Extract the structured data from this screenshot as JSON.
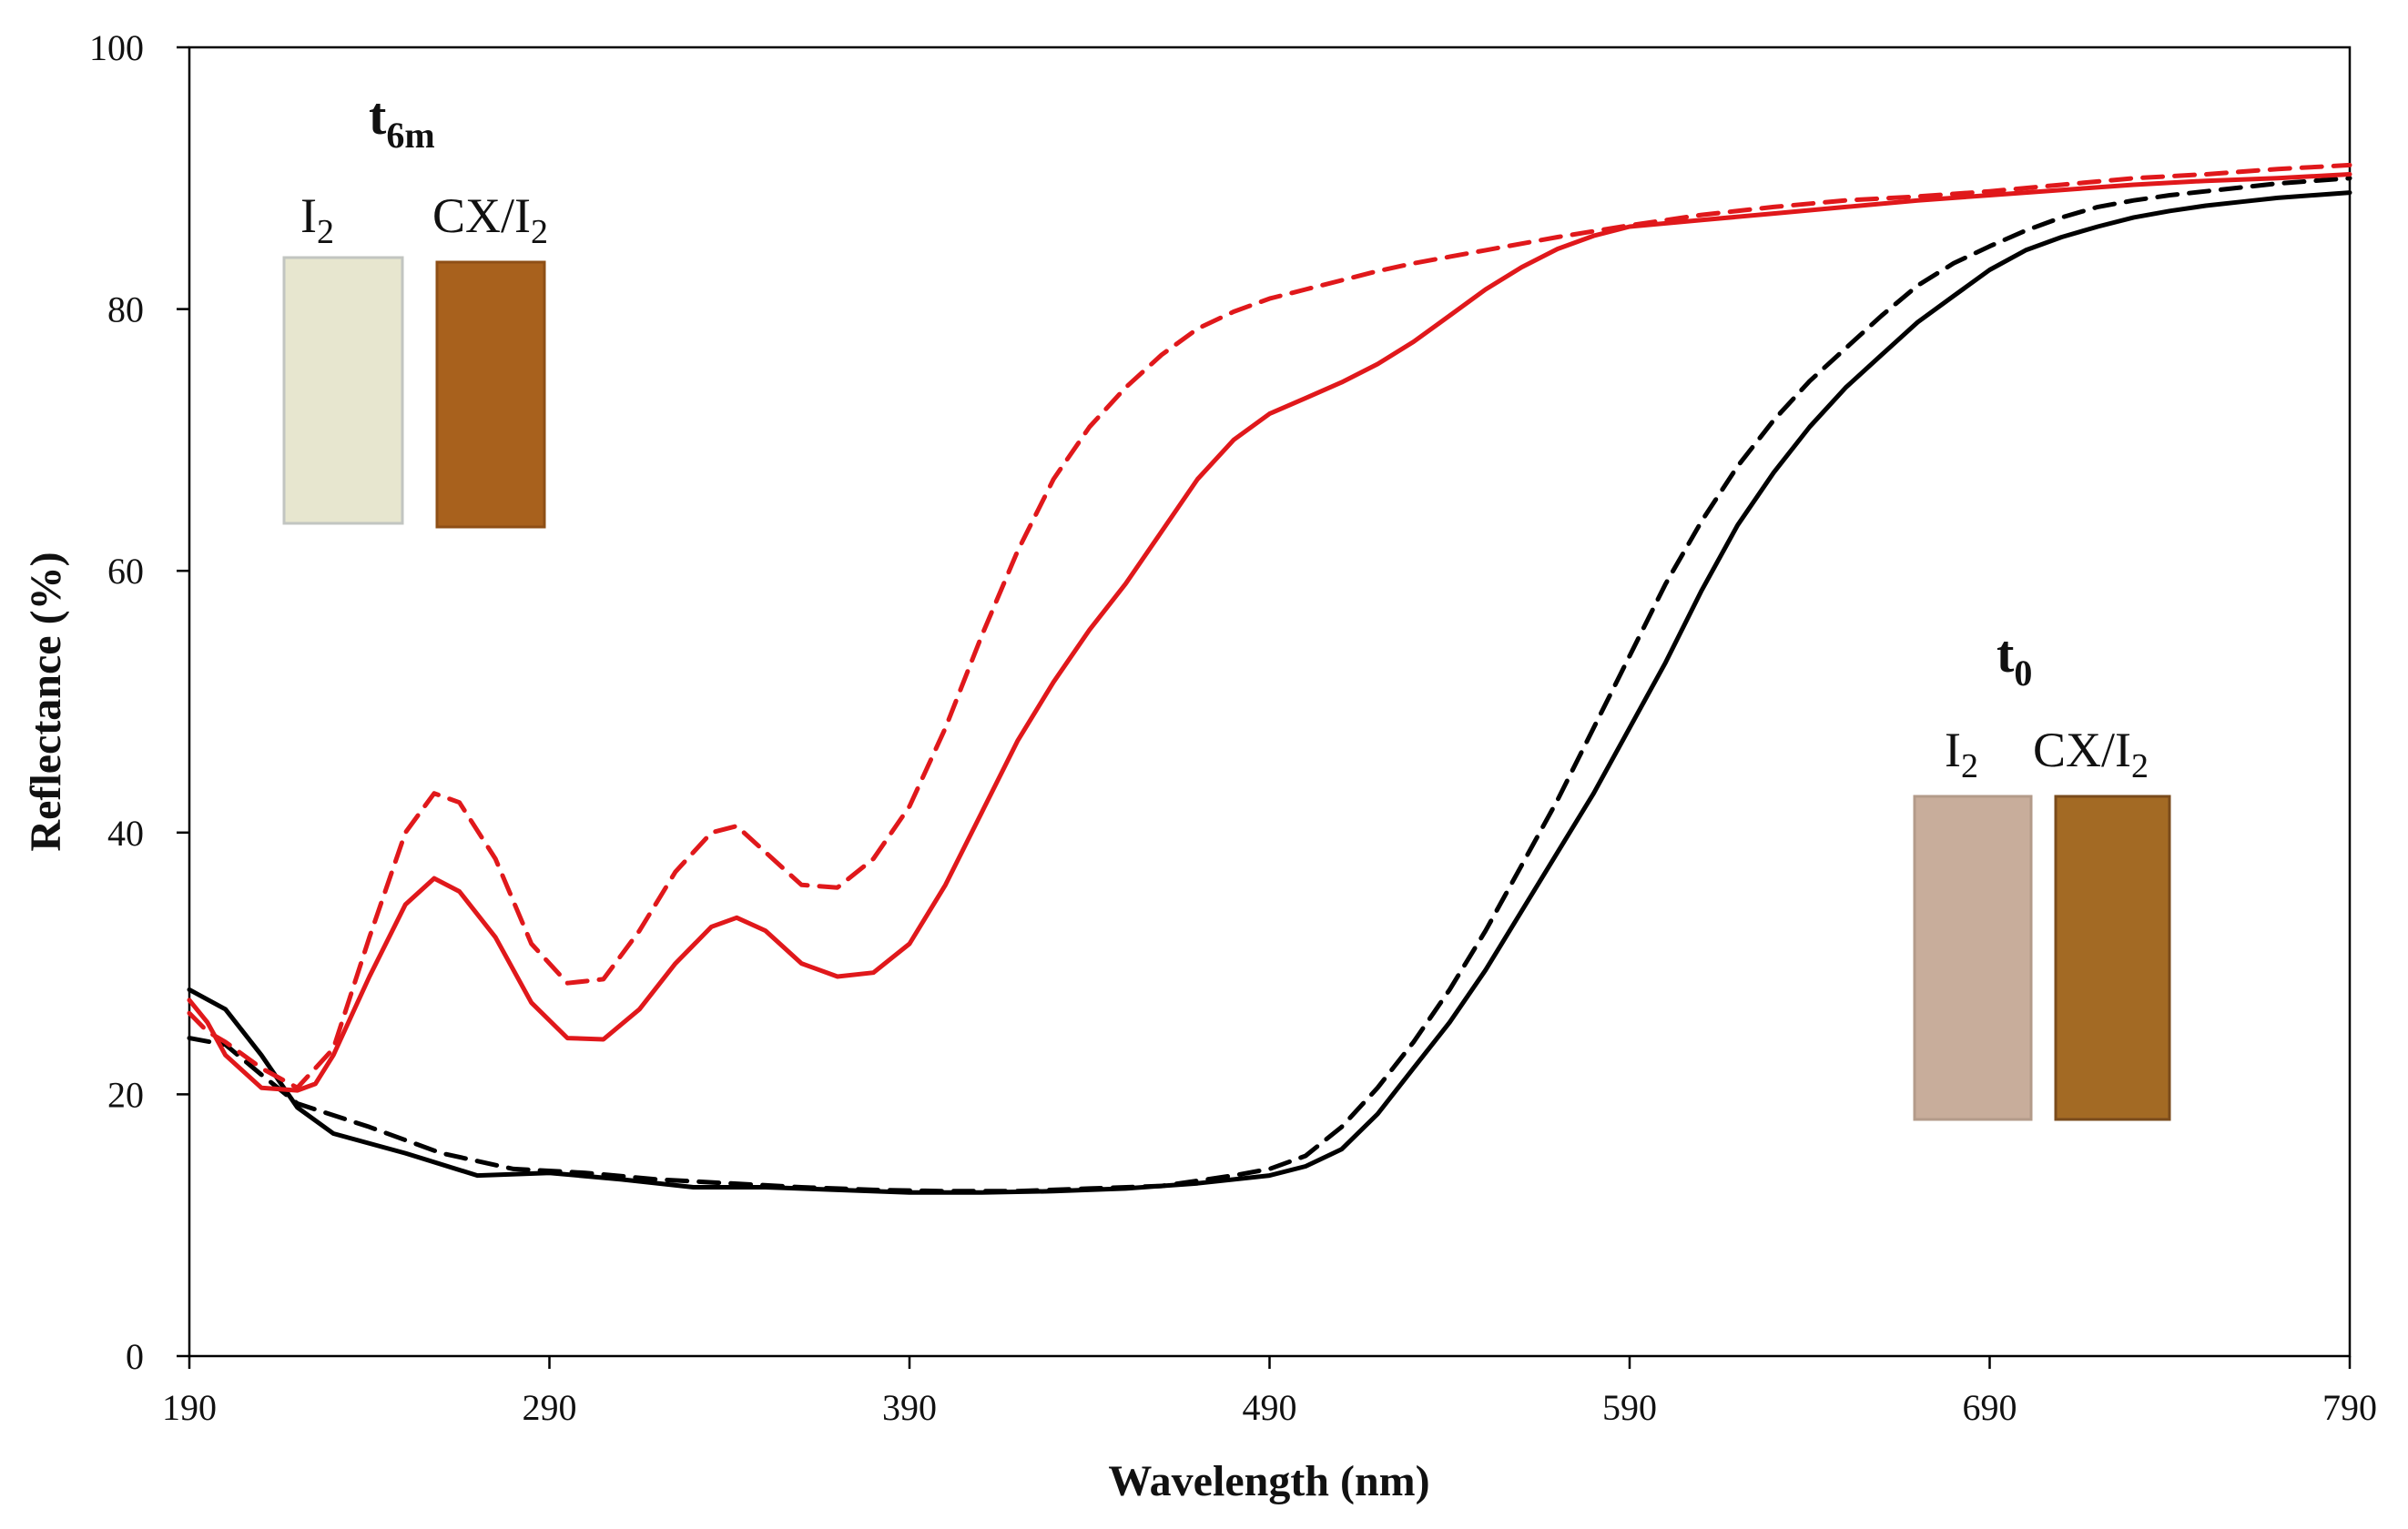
{
  "chart_data": {
    "type": "line",
    "title": "",
    "xlabel": "Wavelength (nm)",
    "ylabel": "Reflectance (%)",
    "xlim": [
      190,
      790
    ],
    "ylim": [
      0,
      100
    ],
    "grid": false,
    "x_ticks": [
      "190",
      "290",
      "390",
      "490",
      "590",
      "690",
      "790"
    ],
    "y_ticks": [
      "0",
      "20",
      "40",
      "60",
      "80",
      "100"
    ],
    "series": [
      {
        "name": "CX/I2 t0 (black solid)",
        "color": "#000000",
        "dashed": false,
        "points": [
          [
            190,
            28
          ],
          [
            200,
            26.5
          ],
          [
            210,
            23
          ],
          [
            220,
            19
          ],
          [
            230,
            17
          ],
          [
            250,
            15.5
          ],
          [
            270,
            13.8
          ],
          [
            290,
            14
          ],
          [
            310,
            13.5
          ],
          [
            330,
            12.9
          ],
          [
            350,
            12.9
          ],
          [
            370,
            12.7
          ],
          [
            390,
            12.5
          ],
          [
            410,
            12.5
          ],
          [
            430,
            12.6
          ],
          [
            450,
            12.8
          ],
          [
            470,
            13.2
          ],
          [
            490,
            13.8
          ],
          [
            500,
            14.5
          ],
          [
            510,
            15.8
          ],
          [
            520,
            18.5
          ],
          [
            530,
            22
          ],
          [
            540,
            25.5
          ],
          [
            550,
            29.5
          ],
          [
            560,
            34
          ],
          [
            570,
            38.5
          ],
          [
            580,
            43
          ],
          [
            590,
            48
          ],
          [
            600,
            53
          ],
          [
            610,
            58.5
          ],
          [
            620,
            63.5
          ],
          [
            630,
            67.5
          ],
          [
            640,
            71
          ],
          [
            650,
            74
          ],
          [
            660,
            76.5
          ],
          [
            670,
            79
          ],
          [
            680,
            81
          ],
          [
            690,
            83
          ],
          [
            700,
            84.5
          ],
          [
            710,
            85.5
          ],
          [
            720,
            86.3
          ],
          [
            730,
            87
          ],
          [
            740,
            87.5
          ],
          [
            750,
            87.9
          ],
          [
            760,
            88.2
          ],
          [
            770,
            88.5
          ],
          [
            780,
            88.7
          ],
          [
            790,
            88.9
          ]
        ]
      },
      {
        "name": "I2 t0 (black dashed)",
        "color": "#000000",
        "dashed": true,
        "points": [
          [
            190,
            24.3
          ],
          [
            200,
            23.8
          ],
          [
            210,
            21.5
          ],
          [
            220,
            19.3
          ],
          [
            240,
            17.5
          ],
          [
            260,
            15.5
          ],
          [
            280,
            14.3
          ],
          [
            300,
            14
          ],
          [
            320,
            13.5
          ],
          [
            340,
            13.2
          ],
          [
            360,
            12.9
          ],
          [
            380,
            12.7
          ],
          [
            400,
            12.6
          ],
          [
            420,
            12.6
          ],
          [
            440,
            12.8
          ],
          [
            460,
            13
          ],
          [
            480,
            13.8
          ],
          [
            490,
            14.3
          ],
          [
            500,
            15.3
          ],
          [
            510,
            17.5
          ],
          [
            520,
            20.5
          ],
          [
            530,
            24
          ],
          [
            540,
            28
          ],
          [
            550,
            32.5
          ],
          [
            560,
            37.5
          ],
          [
            570,
            42.5
          ],
          [
            580,
            48
          ],
          [
            590,
            53.5
          ],
          [
            600,
            59
          ],
          [
            610,
            63.8
          ],
          [
            620,
            68
          ],
          [
            630,
            71.5
          ],
          [
            640,
            74.5
          ],
          [
            650,
            77
          ],
          [
            660,
            79.5
          ],
          [
            670,
            81.8
          ],
          [
            680,
            83.5
          ],
          [
            690,
            84.8
          ],
          [
            700,
            86
          ],
          [
            710,
            87
          ],
          [
            720,
            87.8
          ],
          [
            730,
            88.3
          ],
          [
            740,
            88.7
          ],
          [
            750,
            89
          ],
          [
            760,
            89.3
          ],
          [
            770,
            89.6
          ],
          [
            780,
            89.8
          ],
          [
            790,
            90
          ]
        ]
      },
      {
        "name": "CX/I2 t6m (red solid)",
        "color": "#e0181b",
        "dashed": false,
        "points": [
          [
            190,
            27.2
          ],
          [
            195,
            25.5
          ],
          [
            200,
            23
          ],
          [
            210,
            20.5
          ],
          [
            220,
            20.3
          ],
          [
            225,
            20.8
          ],
          [
            230,
            23
          ],
          [
            240,
            29
          ],
          [
            250,
            34.5
          ],
          [
            258,
            36.5
          ],
          [
            265,
            35.5
          ],
          [
            275,
            32
          ],
          [
            285,
            27
          ],
          [
            295,
            24.3
          ],
          [
            305,
            24.2
          ],
          [
            315,
            26.5
          ],
          [
            325,
            30
          ],
          [
            335,
            32.8
          ],
          [
            342,
            33.5
          ],
          [
            350,
            32.5
          ],
          [
            360,
            30
          ],
          [
            370,
            29
          ],
          [
            380,
            29.3
          ],
          [
            390,
            31.5
          ],
          [
            400,
            36
          ],
          [
            410,
            41.5
          ],
          [
            420,
            47
          ],
          [
            430,
            51.5
          ],
          [
            440,
            55.5
          ],
          [
            450,
            59
          ],
          [
            460,
            63
          ],
          [
            470,
            67
          ],
          [
            480,
            70
          ],
          [
            490,
            72
          ],
          [
            500,
            73.2
          ],
          [
            510,
            74.4
          ],
          [
            520,
            75.8
          ],
          [
            530,
            77.5
          ],
          [
            540,
            79.5
          ],
          [
            550,
            81.5
          ],
          [
            560,
            83.2
          ],
          [
            570,
            84.6
          ],
          [
            580,
            85.6
          ],
          [
            590,
            86.3
          ],
          [
            610,
            86.8
          ],
          [
            630,
            87.3
          ],
          [
            650,
            87.8
          ],
          [
            670,
            88.3
          ],
          [
            690,
            88.7
          ],
          [
            710,
            89.1
          ],
          [
            730,
            89.5
          ],
          [
            750,
            89.8
          ],
          [
            770,
            90
          ],
          [
            790,
            90.3
          ]
        ]
      },
      {
        "name": "I2 t6m (red dashed)",
        "color": "#e0181b",
        "dashed": true,
        "points": [
          [
            190,
            26.2
          ],
          [
            195,
            24.8
          ],
          [
            200,
            24
          ],
          [
            210,
            22
          ],
          [
            220,
            20.5
          ],
          [
            230,
            23.5
          ],
          [
            240,
            32
          ],
          [
            250,
            40
          ],
          [
            258,
            43
          ],
          [
            265,
            42.3
          ],
          [
            275,
            38
          ],
          [
            285,
            31.5
          ],
          [
            295,
            28.5
          ],
          [
            305,
            28.8
          ],
          [
            315,
            32.5
          ],
          [
            325,
            37
          ],
          [
            335,
            40
          ],
          [
            342,
            40.5
          ],
          [
            350,
            38.5
          ],
          [
            360,
            36
          ],
          [
            370,
            35.8
          ],
          [
            380,
            38
          ],
          [
            390,
            42
          ],
          [
            400,
            48
          ],
          [
            410,
            55
          ],
          [
            420,
            61.5
          ],
          [
            430,
            67
          ],
          [
            440,
            71
          ],
          [
            450,
            74
          ],
          [
            460,
            76.5
          ],
          [
            470,
            78.5
          ],
          [
            480,
            79.8
          ],
          [
            490,
            80.8
          ],
          [
            500,
            81.5
          ],
          [
            510,
            82.2
          ],
          [
            520,
            82.9
          ],
          [
            530,
            83.5
          ],
          [
            540,
            84
          ],
          [
            550,
            84.5
          ],
          [
            570,
            85.5
          ],
          [
            590,
            86.4
          ],
          [
            610,
            87.2
          ],
          [
            630,
            87.8
          ],
          [
            650,
            88.3
          ],
          [
            670,
            88.6
          ],
          [
            690,
            89
          ],
          [
            710,
            89.5
          ],
          [
            730,
            90
          ],
          [
            750,
            90.3
          ],
          [
            770,
            90.7
          ],
          [
            790,
            91
          ]
        ]
      }
    ],
    "insets": [
      {
        "title_main": "t",
        "title_sub": "6m",
        "samples": [
          {
            "label_main": "I",
            "label_sub": "2",
            "color": "#e7e6cf",
            "edge_color": "#c2c5c1"
          },
          {
            "label_main": "CX/I",
            "label_sub": "2",
            "color": "#a8611d",
            "edge_color": "#8e4f16"
          }
        ]
      },
      {
        "title_main": "t",
        "title_sub": "0",
        "samples": [
          {
            "label_main": "I",
            "label_sub": "2",
            "color": "#c8ad9b",
            "edge_color": "#b39b8a"
          },
          {
            "label_main": "CX/I",
            "label_sub": "2",
            "color": "#a36a24",
            "edge_color": "#7a4b1c"
          }
        ]
      }
    ]
  }
}
